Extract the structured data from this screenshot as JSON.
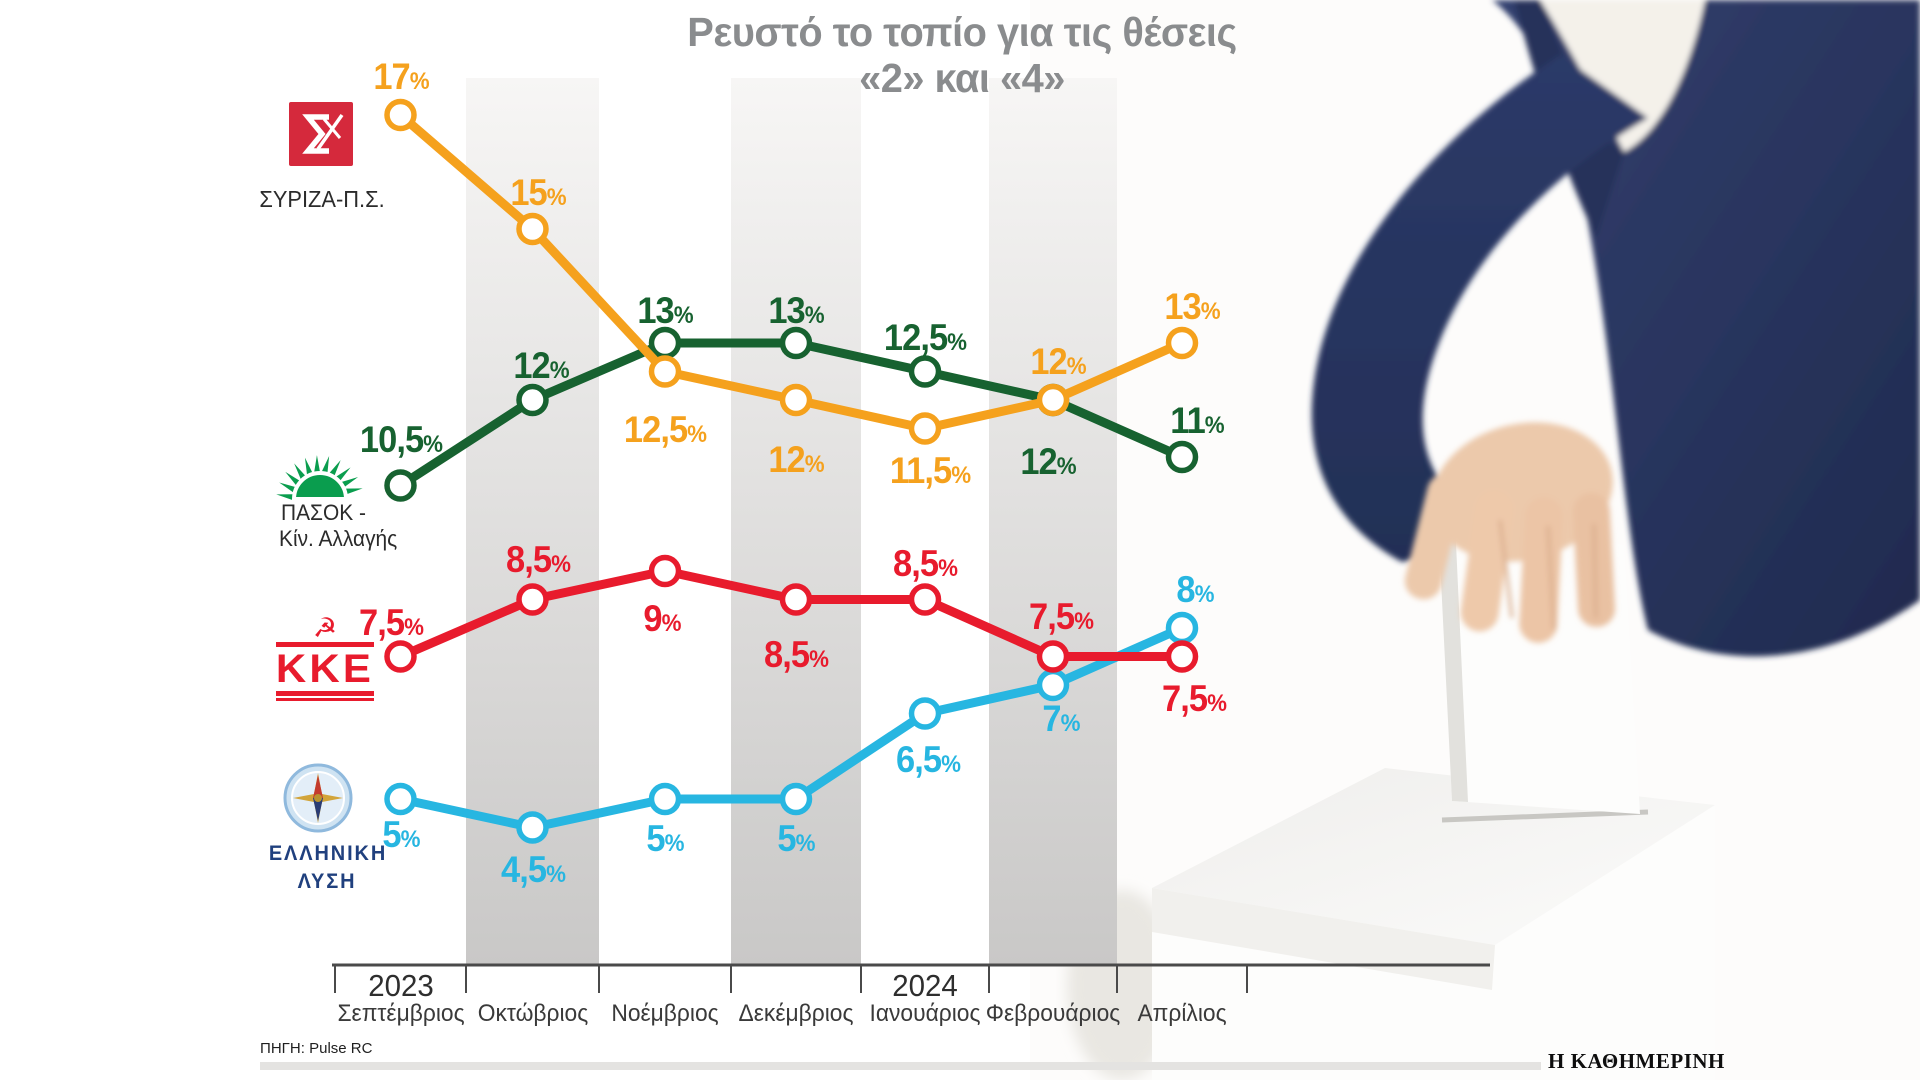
{
  "title": {
    "line1": "Ρευστό το τοπίο για τις θέσεις",
    "line2": "«2» και «4»"
  },
  "source": {
    "label": "ΠΗΓΗ: Pulse RC"
  },
  "credit": {
    "label": "Η ΚΑΘΗΜΕΡΙΝΗ"
  },
  "parties": {
    "syriza": {
      "name": "ΣΥΡΙΖΑ-Π.Σ."
    },
    "pasok": {
      "name_line1": "ΠΑΣΟΚ -",
      "name_line2": "Κίν. Αλλαγής"
    },
    "kke": {
      "name": "KKE",
      "hammer_sickle_icon": "☭"
    },
    "ellysi": {
      "name_line1": "ΕΛΛΗΝΙΚΗ",
      "name_line2": "ΛΥΣΗ"
    }
  },
  "chart_data": {
    "type": "line",
    "title": "Ρευστό το τοπίο για τις θέσεις «2» και «4»",
    "x": [
      "Σεπτέμβριος",
      "Οκτώβριος",
      "Νοέμβριος",
      "Δεκέμβριος",
      "Ιανουάριος",
      "Φεβρουάριος",
      "Απρίλιος"
    ],
    "years": [
      {
        "label": "2023",
        "month_index": 0
      },
      {
        "label": "2024",
        "month_index": 4
      }
    ],
    "shaded_month_indexes": [
      1,
      3,
      5
    ],
    "ylim": [
      2,
      18
    ],
    "grid": false,
    "legend_position": "left-logos",
    "unit": "%",
    "series": [
      {
        "id": "syriza",
        "name": "ΣΥΡΙΖΑ-Π.Σ.",
        "color": "#F5A11D",
        "values": [
          17,
          15,
          12.5,
          12,
          11.5,
          12,
          13
        ],
        "labels": [
          "17",
          "15",
          "12,5",
          "12",
          "11,5",
          "12",
          "13"
        ],
        "label_dx": [
          0,
          5,
          0,
          0,
          5,
          5,
          10
        ],
        "label_dy": [
          -38,
          -36,
          58,
          60,
          42,
          -38,
          -36
        ]
      },
      {
        "id": "pasok",
        "name": "ΠΑΣΟΚ - Κίν. Αλλαγής",
        "color": "#176230",
        "values": [
          10.5,
          12,
          13,
          13,
          12.5,
          12,
          11
        ],
        "labels": [
          "10,5",
          "12",
          "13",
          "13",
          "12,5",
          "12",
          "11"
        ],
        "label_dx": [
          0,
          8,
          0,
          0,
          0,
          -5,
          15
        ],
        "label_dy": [
          -46,
          -34,
          -32,
          -32,
          -34,
          62,
          -36
        ]
      },
      {
        "id": "kke",
        "name": "ΚΚΕ",
        "color": "#E81B2D",
        "values": [
          7.5,
          8.5,
          9,
          8.5,
          8.5,
          7.5,
          7.5
        ],
        "labels": [
          "7,5",
          "8,5",
          "9",
          "8,5",
          "8,5",
          "7,5",
          "7,5"
        ],
        "label_dx": [
          -10,
          5,
          -3,
          0,
          0,
          8,
          12
        ],
        "label_dy": [
          -34,
          -40,
          48,
          55,
          -36,
          -40,
          42
        ]
      },
      {
        "id": "ellysi",
        "name": "ΕΛΛΗΝΙΚΗ ΛΥΣΗ",
        "color": "#27B6E1",
        "values": [
          5,
          4.5,
          5,
          5,
          6.5,
          7,
          8
        ],
        "labels": [
          "5",
          "4,5",
          "5",
          "5",
          "6,5",
          "7",
          "8"
        ],
        "label_dx": [
          0,
          0,
          0,
          0,
          3,
          8,
          13
        ],
        "label_dy": [
          36,
          42,
          40,
          40,
          46,
          34,
          -38
        ]
      }
    ]
  }
}
